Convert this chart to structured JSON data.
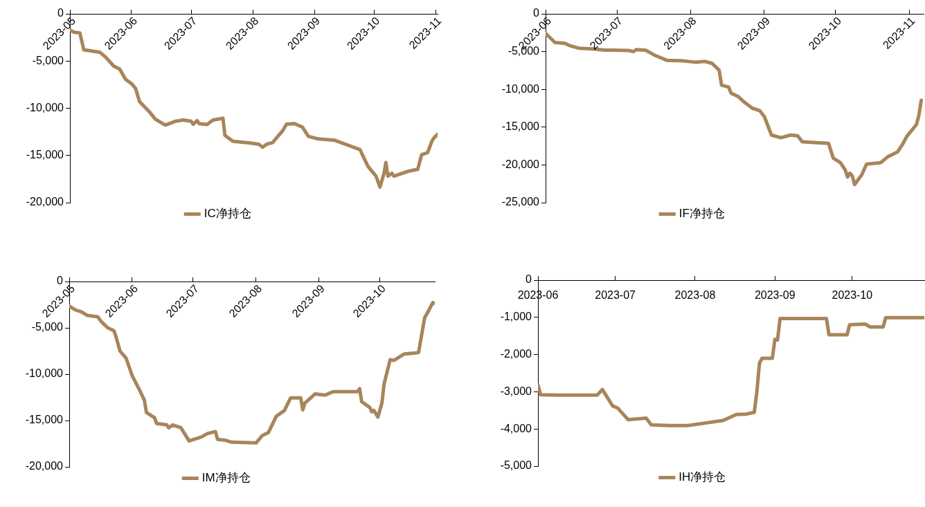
{
  "chart_data": [
    {
      "type": "line",
      "legend": "bottom",
      "grid": false,
      "marker": "none",
      "line_style": "solid",
      "xlim": [
        "2023-05-01",
        "2023-11-02"
      ],
      "xticks": [
        "2023-05",
        "2023-06",
        "2023-07",
        "2023-08",
        "2023-09",
        "2023-10",
        "2023-11"
      ],
      "ylim": [
        -20000,
        0
      ],
      "yticks": [
        {
          "value": -20000,
          "label": "-20,000"
        },
        {
          "value": -15000,
          "label": "-15,000"
        },
        {
          "value": -10000,
          "label": "-10,000"
        },
        {
          "value": -5000,
          "label": "-5,000"
        },
        {
          "value": 0,
          "label": "0"
        }
      ],
      "series": [
        {
          "name": "IC净持仓",
          "color": "#a8855a",
          "x": [
            "2023-05-01",
            "2023-05-03",
            "2023-05-06",
            "2023-05-08",
            "2023-05-16",
            "2023-05-19",
            "2023-05-23",
            "2023-05-26",
            "2023-05-29",
            "2023-06-01",
            "2023-06-03",
            "2023-06-05",
            "2023-06-10",
            "2023-06-13",
            "2023-06-18",
            "2023-06-23",
            "2023-06-27",
            "2023-07-01",
            "2023-07-02",
            "2023-07-04",
            "2023-07-05",
            "2023-07-09",
            "2023-07-12",
            "2023-07-17",
            "2023-07-18",
            "2023-07-22",
            "2023-07-30",
            "2023-08-04",
            "2023-08-06",
            "2023-08-08",
            "2023-08-11",
            "2023-08-14",
            "2023-08-16",
            "2023-08-18",
            "2023-08-22",
            "2023-08-26",
            "2023-08-29",
            "2023-09-03",
            "2023-09-11",
            "2023-09-24",
            "2023-09-26",
            "2023-09-28",
            "2023-10-02",
            "2023-10-04",
            "2023-10-06",
            "2023-10-07",
            "2023-10-08",
            "2023-10-10",
            "2023-10-11",
            "2023-10-18",
            "2023-10-23",
            "2023-10-25",
            "2023-10-28",
            "2023-10-30",
            "2023-10-31",
            "2023-11-02"
          ],
          "values": [
            -1720,
            -1940,
            -2030,
            -3810,
            -4060,
            -4590,
            -5530,
            -5840,
            -6940,
            -7400,
            -7880,
            -9280,
            -10380,
            -11160,
            -11780,
            -11380,
            -11250,
            -11380,
            -11690,
            -11310,
            -11630,
            -11720,
            -11250,
            -11060,
            -12880,
            -13500,
            -13660,
            -13810,
            -14130,
            -13810,
            -13630,
            -12880,
            -12400,
            -11690,
            -11630,
            -12000,
            -12970,
            -13250,
            -13380,
            -14380,
            -15310,
            -16160,
            -17190,
            -18340,
            -16940,
            -15750,
            -17190,
            -16880,
            -17190,
            -16690,
            -16470,
            -14910,
            -14690,
            -13560,
            -13190,
            -12750
          ]
        }
      ]
    },
    {
      "type": "line",
      "legend": "bottom",
      "grid": false,
      "marker": "none",
      "line_style": "solid",
      "xlim": [
        "2023-06-01",
        "2023-11-07"
      ],
      "xticks": [
        "2023-06",
        "2023-07",
        "2023-08",
        "2023-09",
        "2023-10",
        "2023-11"
      ],
      "ylim": [
        -25000,
        0
      ],
      "yticks": [
        {
          "value": -25000,
          "label": "-25,000"
        },
        {
          "value": -20000,
          "label": "-20,000"
        },
        {
          "value": -15000,
          "label": "-15,000"
        },
        {
          "value": -10000,
          "label": "-10,000"
        },
        {
          "value": -5000,
          "label": "-5,000"
        },
        {
          "value": 0,
          "label": "0"
        }
      ],
      "series": [
        {
          "name": "IF净持仓",
          "color": "#a8855a",
          "x": [
            "2023-06-01",
            "2023-06-05",
            "2023-06-09",
            "2023-06-11",
            "2023-06-15",
            "2023-06-21",
            "2023-06-26",
            "2023-06-29",
            "2023-07-06",
            "2023-07-08",
            "2023-07-09",
            "2023-07-13",
            "2023-07-17",
            "2023-07-22",
            "2023-07-28",
            "2023-08-03",
            "2023-08-07",
            "2023-08-10",
            "2023-08-13",
            "2023-08-14",
            "2023-08-17",
            "2023-08-18",
            "2023-08-21",
            "2023-08-24",
            "2023-08-27",
            "2023-08-30",
            "2023-09-01",
            "2023-09-04",
            "2023-09-08",
            "2023-09-12",
            "2023-09-15",
            "2023-09-17",
            "2023-09-28",
            "2023-09-30",
            "2023-10-03",
            "2023-10-05",
            "2023-10-06",
            "2023-10-07",
            "2023-10-08",
            "2023-10-09",
            "2023-10-12",
            "2023-10-14",
            "2023-10-20",
            "2023-10-23",
            "2023-10-27",
            "2023-10-29",
            "2023-10-31",
            "2023-11-04",
            "2023-11-05",
            "2023-11-06"
          ],
          "values": [
            -2600,
            -3800,
            -3900,
            -4200,
            -4550,
            -4650,
            -4800,
            -4800,
            -4850,
            -5000,
            -4750,
            -4800,
            -5500,
            -6150,
            -6200,
            -6400,
            -6300,
            -6550,
            -7450,
            -9450,
            -9700,
            -10500,
            -10950,
            -11800,
            -12500,
            -12800,
            -13600,
            -16050,
            -16400,
            -16050,
            -16150,
            -16950,
            -17150,
            -19100,
            -19700,
            -20650,
            -21600,
            -21100,
            -21450,
            -22600,
            -21300,
            -19900,
            -19700,
            -18900,
            -18300,
            -17350,
            -16200,
            -14650,
            -13450,
            -11450
          ]
        }
      ]
    },
    {
      "type": "line",
      "legend": "bottom",
      "grid": false,
      "marker": "none",
      "line_style": "solid",
      "xlim": [
        "2023-05-01",
        "2023-10-28"
      ],
      "xticks": [
        "2023-05",
        "2023-06",
        "2023-07",
        "2023-08",
        "2023-09",
        "2023-10"
      ],
      "ylim": [
        -20000,
        0
      ],
      "yticks": [
        {
          "value": -20000,
          "label": "-20,000"
        },
        {
          "value": -15000,
          "label": "-15,000"
        },
        {
          "value": -10000,
          "label": "-10,000"
        },
        {
          "value": -5000,
          "label": "-5,000"
        },
        {
          "value": 0,
          "label": "0"
        }
      ],
      "series": [
        {
          "name": "IM净持仓",
          "color": "#a8855a",
          "x": [
            "2023-05-01",
            "2023-05-04",
            "2023-05-07",
            "2023-05-10",
            "2023-05-15",
            "2023-05-17",
            "2023-05-20",
            "2023-05-23",
            "2023-05-24",
            "2023-05-26",
            "2023-05-29",
            "2023-06-01",
            "2023-06-05",
            "2023-06-07",
            "2023-06-08",
            "2023-06-12",
            "2023-06-13",
            "2023-06-18",
            "2023-06-19",
            "2023-06-21",
            "2023-06-25",
            "2023-06-29",
            "2023-07-05",
            "2023-07-08",
            "2023-07-12",
            "2023-07-13",
            "2023-07-17",
            "2023-07-20",
            "2023-08-01",
            "2023-08-04",
            "2023-08-07",
            "2023-08-11",
            "2023-08-15",
            "2023-08-16",
            "2023-08-18",
            "2023-08-23",
            "2023-08-24",
            "2023-08-25",
            "2023-08-30",
            "2023-09-04",
            "2023-09-08",
            "2023-09-20",
            "2023-09-21",
            "2023-09-22",
            "2023-09-26",
            "2023-09-27",
            "2023-09-28",
            "2023-09-30",
            "2023-10-02",
            "2023-10-03",
            "2023-10-06",
            "2023-10-08",
            "2023-10-13",
            "2023-10-18",
            "2023-10-20",
            "2023-10-23",
            "2023-10-25",
            "2023-10-27",
            "2023-10-28"
          ],
          "values": [
            -2660,
            -3060,
            -3280,
            -3660,
            -3810,
            -4380,
            -5000,
            -5310,
            -5940,
            -7500,
            -8280,
            -10160,
            -11880,
            -12810,
            -14130,
            -14690,
            -15310,
            -15470,
            -15780,
            -15470,
            -15780,
            -17190,
            -16780,
            -16410,
            -16190,
            -17030,
            -17130,
            -17340,
            -17410,
            -16630,
            -16310,
            -14530,
            -13910,
            -13440,
            -12560,
            -12560,
            -13840,
            -13130,
            -12130,
            -12250,
            -11880,
            -11880,
            -11560,
            -12970,
            -13590,
            -14060,
            -13910,
            -14630,
            -13060,
            -11090,
            -8440,
            -8500,
            -7810,
            -7720,
            -7660,
            -3910,
            -3130,
            -2280,
            -2340
          ]
        }
      ]
    },
    {
      "type": "line",
      "legend": "bottom",
      "grid": false,
      "marker": "none",
      "line_style": "solid",
      "xlim": [
        "2023-06-01",
        "2023-10-29"
      ],
      "xticks": [
        "2023-06",
        "2023-07",
        "2023-08",
        "2023-09",
        "2023-10"
      ],
      "ylim": [
        -5000,
        0
      ],
      "yticks": [
        {
          "value": -5000,
          "label": "-5,000"
        },
        {
          "value": -4000,
          "label": "-4,000"
        },
        {
          "value": -3000,
          "label": "-3,000"
        },
        {
          "value": -2000,
          "label": "-2,000"
        },
        {
          "value": -1000,
          "label": "-1,000"
        },
        {
          "value": 0,
          "label": "0"
        }
      ],
      "series": [
        {
          "name": "IH净持仓",
          "color": "#a8855a",
          "x": [
            "2023-06-01",
            "2023-06-02",
            "2023-06-09",
            "2023-06-24",
            "2023-06-26",
            "2023-06-30",
            "2023-07-02",
            "2023-07-06",
            "2023-07-13",
            "2023-07-15",
            "2023-07-22",
            "2023-07-29",
            "2023-07-31",
            "2023-08-12",
            "2023-08-17",
            "2023-08-21",
            "2023-08-24",
            "2023-08-25",
            "2023-08-26",
            "2023-08-27",
            "2023-08-31",
            "2023-09-01",
            "2023-09-02",
            "2023-09-03",
            "2023-09-21",
            "2023-09-22",
            "2023-09-29",
            "2023-09-30",
            "2023-10-06",
            "2023-10-08",
            "2023-10-13",
            "2023-10-14",
            "2023-10-29"
          ],
          "values": [
            -2820,
            -3080,
            -3090,
            -3090,
            -2940,
            -3380,
            -3440,
            -3750,
            -3710,
            -3890,
            -3910,
            -3910,
            -3890,
            -3770,
            -3610,
            -3600,
            -3550,
            -2990,
            -2230,
            -2100,
            -2100,
            -1590,
            -1610,
            -1030,
            -1030,
            -1470,
            -1470,
            -1200,
            -1180,
            -1260,
            -1260,
            -1010,
            -1010
          ]
        }
      ]
    }
  ]
}
